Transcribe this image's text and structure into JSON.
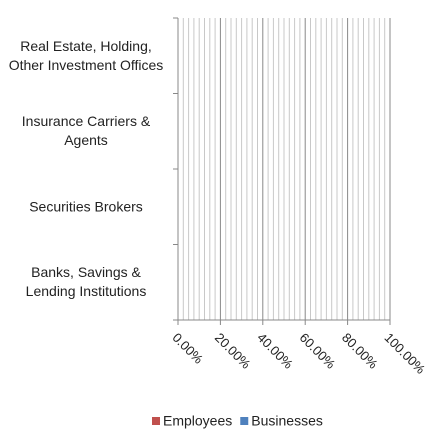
{
  "chart_data": {
    "type": "stacked-bar-horizontal",
    "categories": [
      "Real Estate, Holding, Other Investment Offices",
      "Insurance Carriers & Agents",
      "Securities Brokers",
      "Banks, Savings & Lending Institutions"
    ],
    "series": [
      {
        "name": "Employees",
        "color": "#c0504d",
        "values": [
          0,
          0,
          0,
          0
        ]
      },
      {
        "name": "Businesses",
        "color": "#4f81bd",
        "values": [
          0,
          0,
          0,
          0
        ]
      }
    ],
    "xlim": [
      0,
      100
    ],
    "xticks": [
      {
        "value": 0,
        "label": "0.00%"
      },
      {
        "value": 20,
        "label": "20.00%"
      },
      {
        "value": 40,
        "label": "40.00%"
      },
      {
        "value": 60,
        "label": "60.00%"
      },
      {
        "value": 80,
        "label": "80.00%"
      },
      {
        "value": 100,
        "label": "100.00%"
      }
    ],
    "xminorticks": [
      2.5,
      5,
      7.5,
      10,
      12.5,
      15,
      17.5,
      22.5,
      25,
      27.5,
      30,
      32.5,
      35,
      37.5,
      42.5,
      45,
      47.5,
      50,
      52.5,
      55,
      57.5,
      62.5,
      65,
      67.5,
      70,
      72.5,
      75,
      77.5,
      82.5,
      85,
      87.5,
      90,
      92.5,
      95,
      97.5
    ],
    "grid": true,
    "legend": "bottom"
  }
}
